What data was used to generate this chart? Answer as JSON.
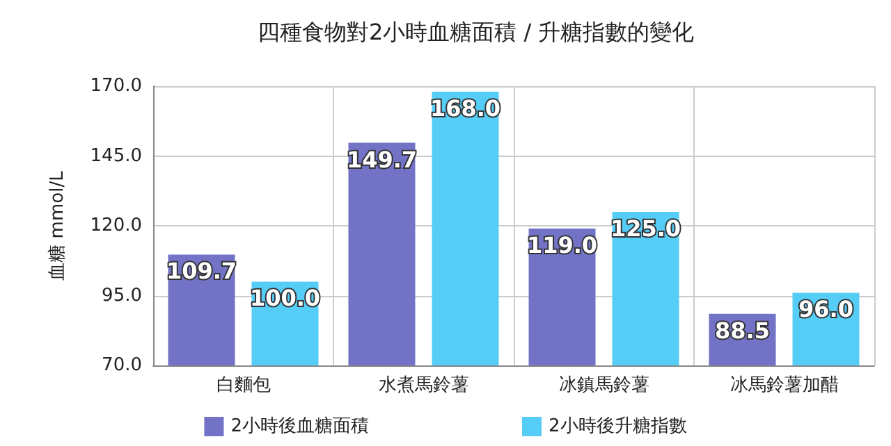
{
  "chart_data": {
    "type": "bar",
    "title": "四種食物對2小時血糖面積 / 升糖指數的變化",
    "ylabel": "血糖 mmol/L",
    "categories": [
      "白麵包",
      "水煮馬鈴薯",
      "冰鎮馬鈴薯",
      "冰馬鈴薯加醋"
    ],
    "series": [
      {
        "name": "2小時後血糖面積",
        "color": "#7272c6",
        "values": [
          109.7,
          149.7,
          119.0,
          88.5
        ],
        "value_labels": [
          "109.7",
          "149.7",
          "119.0",
          "88.5"
        ]
      },
      {
        "name": "2小時後升糖指數",
        "color": "#56cdf6",
        "values": [
          100.0,
          168.0,
          125.0,
          96.0
        ],
        "value_labels": [
          "100.0",
          "168.0",
          "125.0",
          "96.0"
        ]
      }
    ],
    "ylim": [
      70,
      170
    ],
    "yticks": [
      {
        "value": 70,
        "label": "70.0"
      },
      {
        "value": 95,
        "label": "95.0"
      },
      {
        "value": 120,
        "label": "120.0"
      },
      {
        "value": 145,
        "label": "145.0"
      },
      {
        "value": 170,
        "label": "170.0"
      }
    ],
    "grid": true,
    "legend": "bottom"
  }
}
